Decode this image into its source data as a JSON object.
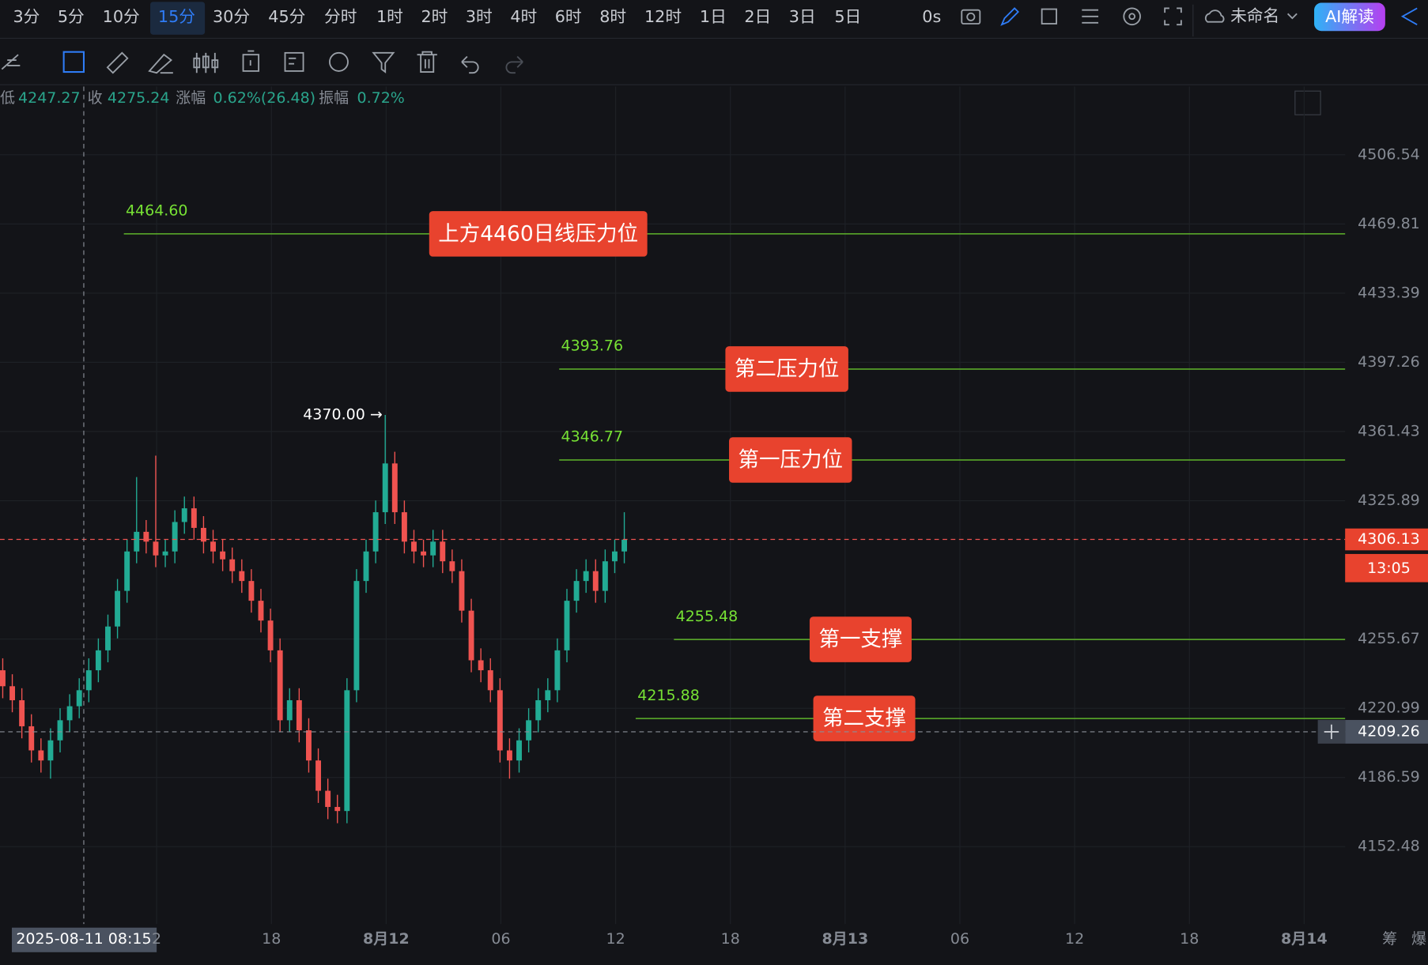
{
  "toolbar": {
    "periods": [
      "3分",
      "5分",
      "10分",
      "15分",
      "30分",
      "45分",
      "分时",
      "1时",
      "2时",
      "3时",
      "4时",
      "6时",
      "8时",
      "12时",
      "1日",
      "2日",
      "3日",
      "5日"
    ],
    "active_period": "15分",
    "countdown_setting": "0s",
    "layout_name": "未命名",
    "ai_button": "AI解读"
  },
  "info_bar": {
    "low_label": "低",
    "low": "4247.27",
    "close_label": "收",
    "close": "4275.24",
    "change_label": "涨幅",
    "change": "0.62%(26.48)",
    "amplitude_label": "振幅",
    "amplitude": "0.72%"
  },
  "chart_data": {
    "type": "candlestick",
    "open": [
      4240,
      4232,
      4225,
      4212,
      4200,
      4195,
      4205,
      4215,
      4222,
      4230,
      4240,
      4250,
      4262,
      4280,
      4300,
      4310,
      4305,
      4298,
      4300,
      4315,
      4322,
      4312,
      4305,
      4300,
      4296,
      4290,
      4285,
      4275,
      4265,
      4250,
      4215,
      4225,
      4210,
      4195,
      4180,
      4172,
      4170,
      4230,
      4285,
      4300,
      4320,
      4345,
      4320,
      4305,
      4300,
      4298,
      4305,
      4295,
      4290,
      4270,
      4245,
      4240,
      4230,
      4200,
      4195,
      4205,
      4215,
      4225,
      4230,
      4250,
      4275,
      4285,
      4290,
      4280,
      4295,
      4300
    ],
    "high": [
      4246,
      4238,
      4231,
      4218,
      4206,
      4211,
      4221,
      4228,
      4236,
      4246,
      4256,
      4268,
      4286,
      4306,
      4338,
      4316,
      4349,
      4306,
      4321,
      4328,
      4328,
      4318,
      4311,
      4306,
      4302,
      4296,
      4291,
      4281,
      4271,
      4256,
      4231,
      4231,
      4216,
      4201,
      4186,
      4178,
      4236,
      4291,
      4306,
      4326,
      4370,
      4351,
      4326,
      4311,
      4306,
      4311,
      4311,
      4301,
      4296,
      4276,
      4251,
      4246,
      4236,
      4206,
      4211,
      4221,
      4231,
      4236,
      4256,
      4281,
      4291,
      4296,
      4296,
      4301,
      4306,
      4320
    ],
    "low": [
      4226,
      4219,
      4206,
      4194,
      4189,
      4186,
      4199,
      4209,
      4216,
      4224,
      4234,
      4244,
      4256,
      4274,
      4294,
      4299,
      4292,
      4292,
      4294,
      4309,
      4306,
      4299,
      4294,
      4290,
      4284,
      4279,
      4269,
      4259,
      4244,
      4209,
      4209,
      4204,
      4189,
      4174,
      4166,
      4164,
      4164,
      4224,
      4279,
      4294,
      4314,
      4314,
      4299,
      4294,
      4292,
      4292,
      4289,
      4284,
      4264,
      4239,
      4234,
      4224,
      4194,
      4186,
      4189,
      4199,
      4209,
      4219,
      4224,
      4244,
      4269,
      4279,
      4274,
      4274,
      4289,
      4294
    ],
    "close": [
      4232,
      4225,
      4212,
      4200,
      4195,
      4205,
      4215,
      4222,
      4230,
      4240,
      4250,
      4262,
      4280,
      4300,
      4310,
      4305,
      4298,
      4300,
      4315,
      4322,
      4312,
      4305,
      4300,
      4296,
      4290,
      4285,
      4275,
      4265,
      4250,
      4215,
      4225,
      4210,
      4195,
      4180,
      4172,
      4170,
      4230,
      4285,
      4300,
      4320,
      4345,
      4320,
      4305,
      4300,
      4298,
      4305,
      4295,
      4290,
      4270,
      4245,
      4240,
      4230,
      4200,
      4195,
      4205,
      4215,
      4225,
      4230,
      4250,
      4275,
      4285,
      4290,
      4280,
      4295,
      4300,
      4306
    ],
    "up_color": "#22ab94",
    "down_color": "#ef5350",
    "log_scale": true,
    "grid": true,
    "ylim": [
      4114.65,
      4543.07
    ],
    "yticks": [
      4506.54,
      4469.81,
      4433.39,
      4397.26,
      4361.43,
      4325.89,
      4255.67,
      4220.99,
      4186.59,
      4152.48
    ],
    "xtick_labels": [
      "2",
      "18",
      "8月12",
      "06",
      "12",
      "18",
      "8月13",
      "06",
      "12",
      "18",
      "8月14"
    ],
    "level_color": "#5fb52a",
    "levels": [
      {
        "value": 4464.6,
        "label": "4464.60",
        "annotation": "上方4460日线压力位"
      },
      {
        "value": 4393.76,
        "label": "4393.76",
        "annotation": "第二压力位"
      },
      {
        "value": 4346.77,
        "label": "4346.77",
        "annotation": "第一压力位"
      },
      {
        "value": 4255.48,
        "label": "4255.48",
        "annotation": "第一支撑"
      },
      {
        "value": 4215.88,
        "label": "4215.88",
        "annotation": "第二支撑"
      }
    ],
    "high_marker": {
      "value": 4370,
      "label": "4370.00 →"
    },
    "last_price": {
      "value": 4306.13,
      "countdown": "13:05"
    },
    "crosshair": {
      "value": 4209.26,
      "time": "2025-08-11 08:15"
    },
    "side_labels": [
      "筹",
      "爆"
    ]
  }
}
